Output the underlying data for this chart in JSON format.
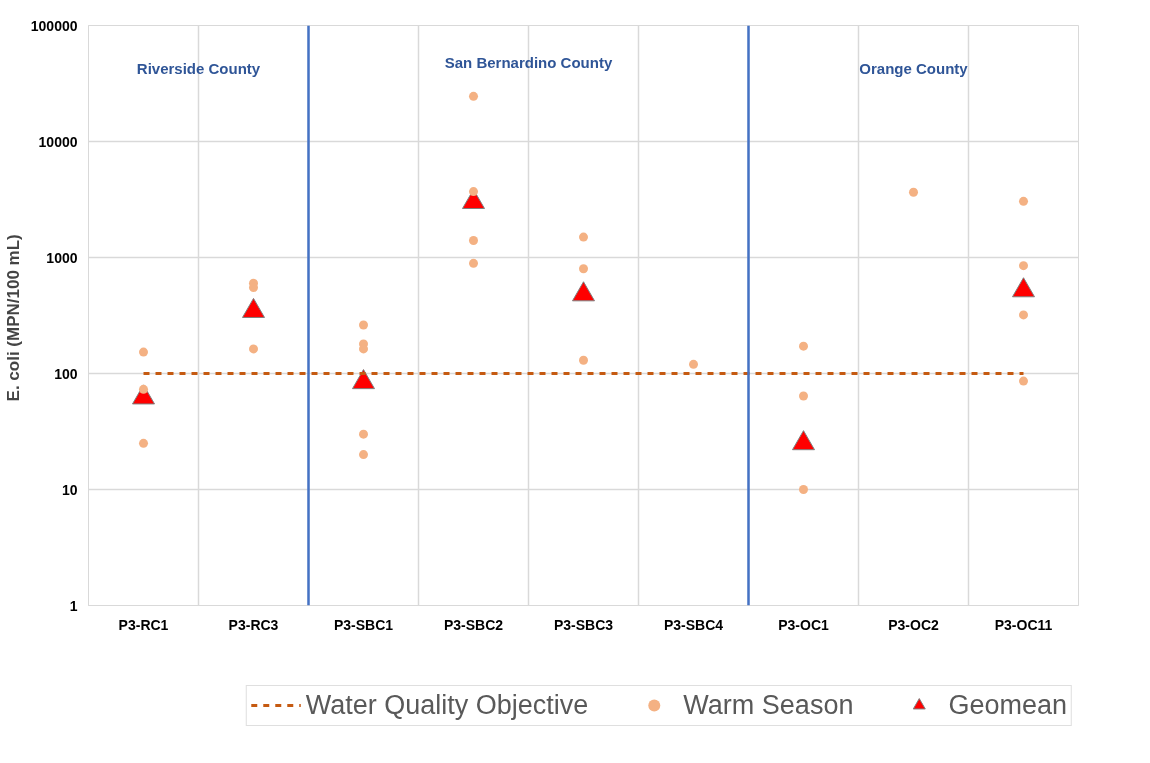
{
  "chart_data": {
    "type": "scatter",
    "ylabel": "E. coli  (MPN/100 mL)",
    "categories": [
      "P3-RC1",
      "P3-RC3",
      "P3-SBC1",
      "P3-SBC2",
      "P3-SBC3",
      "P3-SBC4",
      "P3-OC1",
      "P3-OC2",
      "P3-OC11"
    ],
    "series": [
      {
        "name": "Water Quality Objective",
        "type": "line",
        "line_style": "dashed",
        "color": "#c55a11",
        "values": [
          100,
          100,
          100,
          100,
          100,
          100,
          100,
          100,
          100
        ]
      },
      {
        "name": "Warm Season",
        "marker": "circle",
        "color": "#f4b183",
        "x": [
          "P3-RC1",
          "P3-RC1",
          "P3-RC1",
          "P3-RC3",
          "P3-RC3",
          "P3-RC3",
          "P3-SBC1",
          "P3-SBC1",
          "P3-SBC1",
          "P3-SBC1",
          "P3-SBC1",
          "P3-SBC2",
          "P3-SBC2",
          "P3-SBC2",
          "P3-SBC2",
          "P3-SBC3",
          "P3-SBC3",
          "P3-SBC3",
          "P3-SBC4",
          "P3-OC1",
          "P3-OC1",
          "P3-OC1",
          "P3-OC2",
          "P3-OC11",
          "P3-OC11",
          "P3-OC11",
          "P3-OC11"
        ],
        "values": [
          153,
          73,
          25,
          600,
          550,
          163,
          262,
          180,
          163,
          30,
          20,
          24500,
          3700,
          1400,
          890,
          1500,
          800,
          130,
          120,
          172,
          64,
          10,
          3650,
          3050,
          850,
          320,
          86
        ]
      },
      {
        "name": "Geomean",
        "marker": "triangle",
        "color": "#ff0000",
        "x": [
          "P3-RC1",
          "P3-RC3",
          "P3-SBC1",
          "P3-SBC2",
          "P3-SBC3",
          "P3-OC1",
          "P3-OC11"
        ],
        "values": [
          62,
          345,
          84,
          3000,
          480,
          25,
          520
        ]
      }
    ],
    "ylim": [
      1,
      100000
    ],
    "yticks": [
      1,
      10,
      100,
      1000,
      10000,
      100000
    ],
    "log": true,
    "grid": true,
    "legend": "bottom",
    "annotations": [
      "Riverside County",
      "San Bernardino County",
      "Orange County"
    ]
  }
}
